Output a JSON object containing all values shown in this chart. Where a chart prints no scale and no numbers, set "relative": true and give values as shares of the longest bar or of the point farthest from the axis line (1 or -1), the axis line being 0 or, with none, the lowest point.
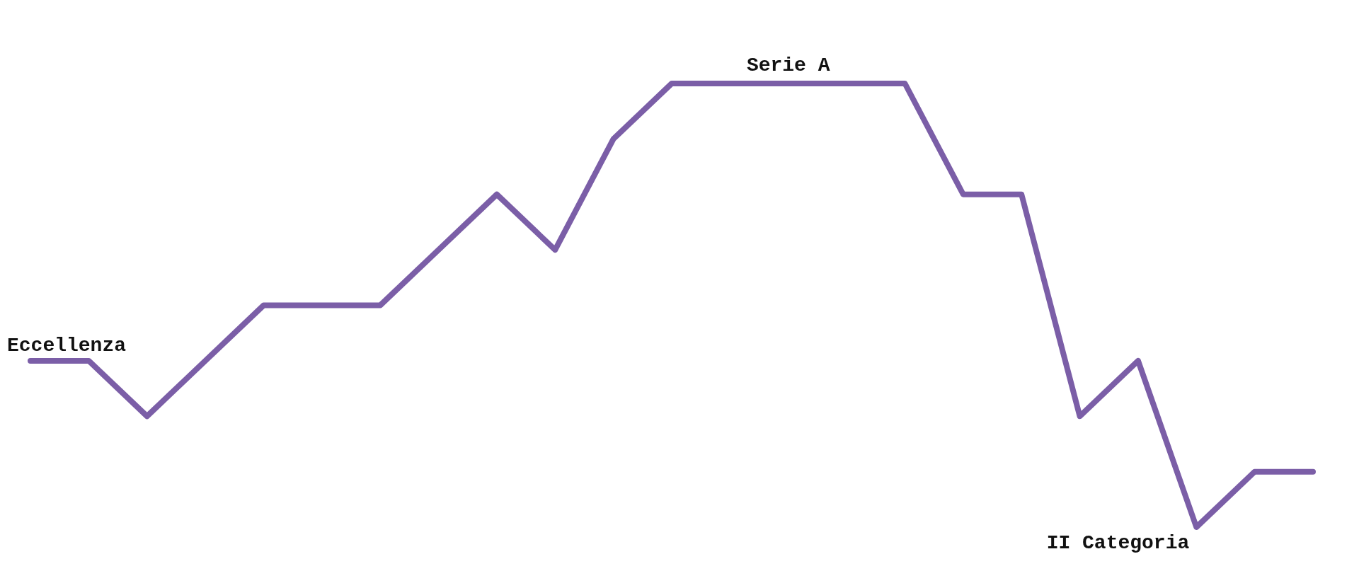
{
  "chart_data": {
    "type": "line",
    "relative": true,
    "categories": [
      null,
      null,
      null,
      null,
      null,
      null,
      null,
      null,
      null,
      null,
      null,
      null,
      null,
      null,
      null,
      null,
      null,
      null,
      null,
      null,
      null,
      null,
      null
    ],
    "series": [
      {
        "color": "#7b5ea7",
        "values": [
          0.375,
          0.375,
          0.25,
          0.375,
          0.5,
          0.5,
          0.5,
          0.625,
          0.75,
          0.625,
          0.875,
          1,
          1,
          1,
          1,
          1,
          0.75,
          0.75,
          0.25,
          0.375,
          0,
          0.125,
          0.125
        ]
      }
    ],
    "annotations": [
      {
        "text": "Eccellenza",
        "y": 0.375
      },
      {
        "text": "Serie A",
        "y": 1
      },
      "II Categoria"
    ]
  }
}
